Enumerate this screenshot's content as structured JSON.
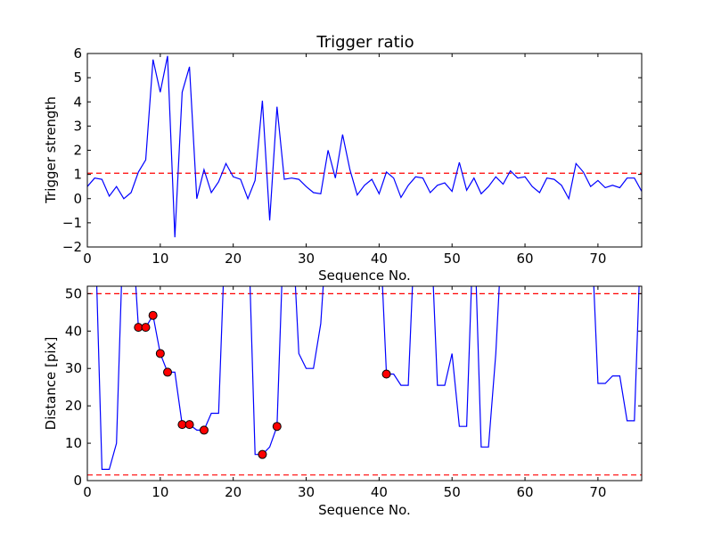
{
  "chart_data": [
    {
      "type": "line",
      "title": "Trigger ratio",
      "xlabel": "Sequence No.",
      "ylabel": "Trigger strength",
      "xlim": [
        0,
        76
      ],
      "ylim": [
        -2,
        6
      ],
      "xticks": [
        "0",
        "10",
        "20",
        "30",
        "40",
        "50",
        "60",
        "70"
      ],
      "yticks": [
        "−2",
        "−1",
        "0",
        "1",
        "2",
        "3",
        "4",
        "5",
        "6"
      ],
      "grid": false,
      "line_color": "#0000ff",
      "threshold_color": "#ff0000",
      "thresholds": [
        1.05
      ],
      "series": [
        {
          "x": [
            0,
            1,
            2,
            3,
            4,
            5,
            6,
            7,
            8,
            9,
            10,
            11,
            12,
            13,
            14,
            15,
            16,
            17,
            18,
            19,
            20,
            21,
            22,
            23,
            24,
            25,
            26,
            27,
            28,
            29,
            30,
            31,
            32,
            33,
            34,
            35,
            36,
            37,
            38,
            39,
            40,
            41,
            42,
            43,
            44,
            45,
            46,
            47,
            48,
            49,
            50,
            51,
            52,
            53,
            54,
            55,
            56,
            57,
            58,
            59,
            60,
            61,
            62,
            63,
            64,
            65,
            66,
            67,
            68,
            69,
            70,
            71,
            72,
            73,
            74,
            75,
            76
          ],
          "values": [
            0.5,
            0.85,
            0.8,
            0.1,
            0.5,
            0.0,
            0.25,
            1.1,
            1.6,
            5.75,
            4.4,
            5.9,
            -1.6,
            4.4,
            5.45,
            0.0,
            1.2,
            0.25,
            0.7,
            1.45,
            0.9,
            0.8,
            0.0,
            0.75,
            4.05,
            -0.9,
            3.8,
            0.8,
            0.85,
            0.8,
            0.5,
            0.25,
            0.2,
            2.0,
            0.85,
            2.65,
            1.2,
            0.15,
            0.55,
            0.8,
            0.2,
            1.1,
            0.85,
            0.05,
            0.55,
            0.9,
            0.85,
            0.25,
            0.55,
            0.65,
            0.3,
            1.5,
            0.35,
            0.85,
            0.2,
            0.5,
            0.9,
            0.6,
            1.15,
            0.85,
            0.9,
            0.5,
            0.25,
            0.85,
            0.8,
            0.55,
            0.0,
            1.45,
            1.1,
            0.5,
            0.75,
            0.45,
            0.55,
            0.45,
            0.85,
            0.85,
            0.3
          ]
        }
      ]
    },
    {
      "type": "line",
      "title": "",
      "xlabel": "Sequence No.",
      "ylabel": "Distance [pix]",
      "xlim": [
        0,
        76
      ],
      "ylim": [
        0,
        52
      ],
      "xticks": [
        "0",
        "10",
        "20",
        "30",
        "40",
        "50",
        "60",
        "70"
      ],
      "yticks": [
        "0",
        "10",
        "20",
        "30",
        "40",
        "50"
      ],
      "grid": false,
      "line_color": "#0000ff",
      "threshold_color": "#ff0000",
      "marker_color": "#ff0000",
      "thresholds": [
        50,
        1.5
      ],
      "series": [
        {
          "x": [
            1,
            2,
            3,
            4,
            5,
            6,
            7,
            8,
            9,
            10,
            11,
            12,
            13,
            14,
            15,
            16,
            17,
            18,
            19,
            20,
            21,
            22,
            23,
            24,
            25,
            26,
            27,
            28,
            29,
            30,
            31,
            32,
            33,
            34,
            35,
            36,
            37,
            38,
            39,
            40,
            41,
            42,
            43,
            44,
            45,
            46,
            47,
            48,
            49,
            50,
            51,
            52,
            53,
            54,
            55,
            56,
            57,
            58,
            59,
            60,
            61,
            62,
            63,
            64,
            65,
            66,
            67,
            68,
            69,
            70,
            71,
            72,
            73,
            74,
            75,
            76
          ],
          "values": [
            null,
            3,
            3,
            10,
            null,
            null,
            41,
            41,
            44.2,
            34,
            29,
            29,
            15,
            15,
            13.5,
            13.5,
            18,
            18,
            null,
            null,
            null,
            null,
            7,
            7,
            9,
            14.5,
            null,
            null,
            34,
            30,
            30,
            42,
            null,
            null,
            null,
            null,
            null,
            null,
            null,
            null,
            28.5,
            28.5,
            25.5,
            25.5,
            null,
            null,
            null,
            25.5,
            25.5,
            34,
            14.5,
            14.5,
            null,
            9,
            9,
            34,
            null,
            null,
            null,
            null,
            null,
            null,
            null,
            null,
            null,
            null,
            null,
            null,
            null,
            26,
            26,
            28,
            28,
            16,
            16,
            null
          ]
        }
      ],
      "markers": {
        "x": [
          7,
          8,
          9,
          10,
          11,
          13,
          14,
          16,
          24,
          26,
          41
        ],
        "values": [
          41,
          41,
          44.2,
          34,
          29,
          15,
          15,
          13.5,
          7,
          14.5,
          28.5
        ]
      }
    }
  ]
}
